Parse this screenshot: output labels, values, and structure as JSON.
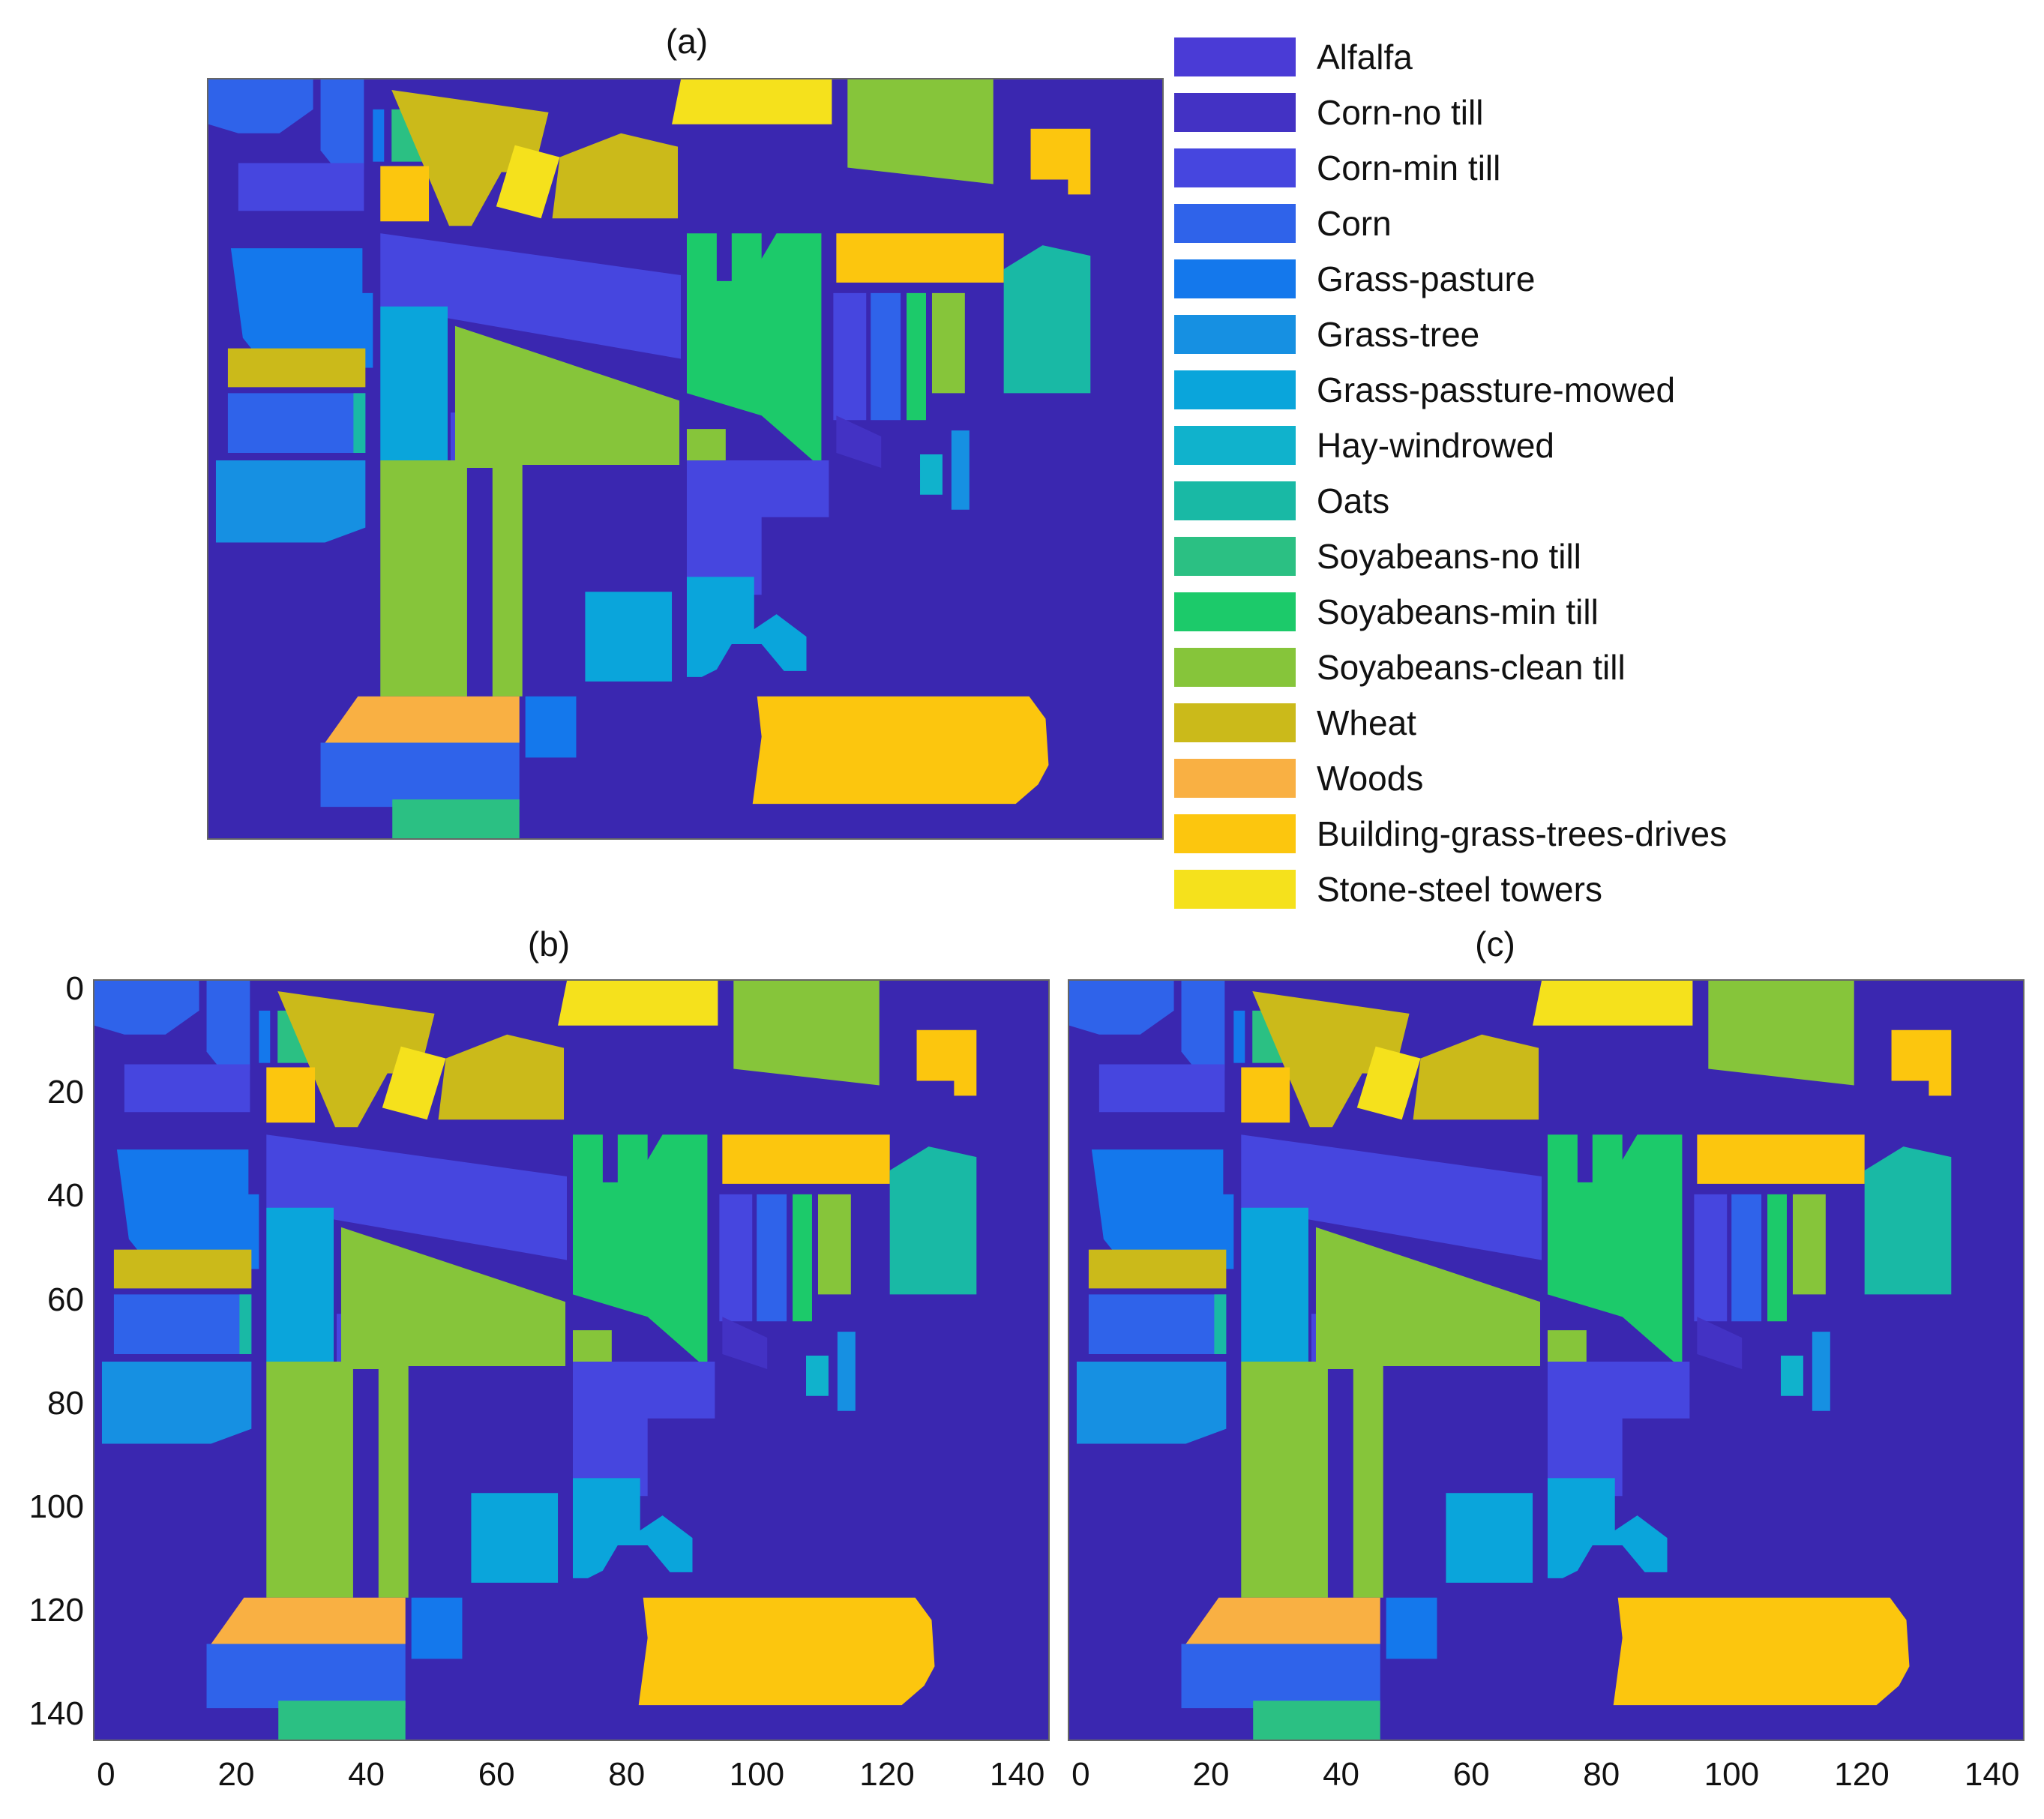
{
  "chart_data": {
    "type": "heatmap",
    "description_free": true,
    "panels": [
      {
        "label": "(a)"
      },
      {
        "label": "(b)"
      },
      {
        "label": "(c)"
      }
    ],
    "classes": [
      {
        "name": "Alfalfa",
        "color": "#4a3bd6"
      },
      {
        "name": "Corn-no till",
        "color": "#4332c4"
      },
      {
        "name": "Corn-min till",
        "color": "#4646df"
      },
      {
        "name": "Corn",
        "color": "#2f63ea"
      },
      {
        "name": "Grass-pasture",
        "color": "#1478ec"
      },
      {
        "name": "Grass-tree",
        "color": "#1690e2"
      },
      {
        "name": "Grass-passture-mowed",
        "color": "#0aa5db"
      },
      {
        "name": "Hay-windrowed",
        "color": "#10b2cc"
      },
      {
        "name": "Oats",
        "color": "#19b9a5"
      },
      {
        "name": "Soyabeans-no till",
        "color": "#2bc083"
      },
      {
        "name": "Soyabeans-min till",
        "color": "#1cca6a"
      },
      {
        "name": "Soyabeans-clean till",
        "color": "#86c53a"
      },
      {
        "name": "Wheat",
        "color": "#cbba1a"
      },
      {
        "name": "Woods",
        "color": "#f9b043"
      },
      {
        "name": "Building-grass-trees-drives",
        "color": "#fcc60e"
      },
      {
        "name": "Stone-steel towers",
        "color": "#f5e11c"
      }
    ],
    "background_color": "#3a27b0",
    "x_ticks": [
      0,
      20,
      40,
      60,
      80,
      100,
      120,
      140
    ],
    "y_ticks": [
      0,
      20,
      40,
      60,
      80,
      100,
      120,
      140
    ],
    "xlim": [
      -2,
      145
    ],
    "ylim": [
      -2,
      145
    ]
  }
}
